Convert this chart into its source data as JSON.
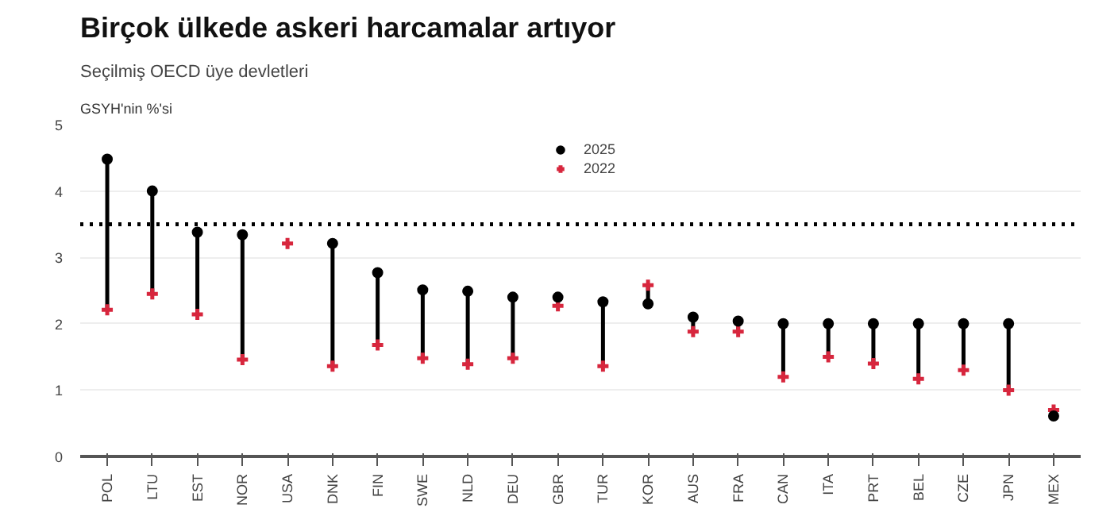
{
  "chart_data": {
    "type": "scatter",
    "title": "Birçok ülkede askeri harcamalar artıyor",
    "subtitle": "Seçilmiş OECD üye devletleri",
    "ylabel": "GSYH'nin %'si",
    "categories": [
      "POL",
      "LTU",
      "EST",
      "NOR",
      "USA",
      "DNK",
      "FIN",
      "SWE",
      "NLD",
      "DEU",
      "GBR",
      "TUR",
      "KOR",
      "AUS",
      "FRA",
      "CAN",
      "ITA",
      "PRT",
      "BEL",
      "CZE",
      "JPN",
      "MEX"
    ],
    "series": [
      {
        "name": "2025",
        "color": "#000000",
        "marker": "circle",
        "values": [
          4.48,
          4.0,
          3.38,
          3.34,
          null,
          3.21,
          2.77,
          2.51,
          2.49,
          2.4,
          2.4,
          2.33,
          2.3,
          2.1,
          2.04,
          2.0,
          2.0,
          2.0,
          2.0,
          2.0,
          2.0,
          0.61
        ]
      },
      {
        "name": "2022",
        "color": "#d7263d",
        "marker": "cross",
        "values": [
          2.21,
          2.45,
          2.14,
          1.46,
          3.21,
          1.36,
          1.68,
          1.48,
          1.39,
          1.48,
          2.27,
          1.36,
          2.58,
          1.88,
          1.88,
          1.2,
          1.5,
          1.4,
          1.17,
          1.3,
          1.0,
          0.7
        ]
      }
    ],
    "ylim": [
      0,
      5
    ],
    "yticks": [
      0,
      1,
      2,
      3,
      4,
      5
    ],
    "grid": "y",
    "legend": "top",
    "ref_lines": [
      {
        "axis": "y",
        "value": 3.5,
        "color": "#000000",
        "line_style": "dotted"
      }
    ]
  }
}
